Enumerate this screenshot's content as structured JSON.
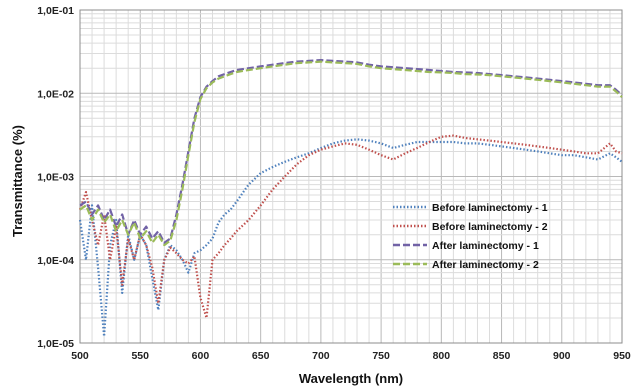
{
  "chart_data": {
    "type": "line",
    "title": "",
    "xlabel": "Wavelength (nm)",
    "ylabel": "Transmittance (%)",
    "xlim": [
      500,
      950
    ],
    "ylim": [
      1e-05,
      0.1
    ],
    "yscale": "log",
    "grid": true,
    "legend_position": "center-right",
    "x_ticks": [
      500,
      550,
      600,
      650,
      700,
      750,
      800,
      850,
      900,
      950
    ],
    "x_tick_labels": [
      "500",
      "550",
      "600",
      "650",
      "700",
      "750",
      "800",
      "850",
      "900",
      "950"
    ],
    "y_tick_labels": [
      "1,0E-05",
      "1,0E-04",
      "1,0E-03",
      "1,0E-02",
      "1,0E-01"
    ],
    "x": [
      500,
      505,
      510,
      515,
      520,
      525,
      530,
      535,
      540,
      545,
      550,
      555,
      560,
      565,
      570,
      575,
      580,
      585,
      590,
      595,
      600,
      605,
      610,
      615,
      620,
      625,
      630,
      640,
      650,
      660,
      670,
      680,
      690,
      700,
      710,
      720,
      730,
      740,
      750,
      760,
      770,
      780,
      790,
      800,
      810,
      820,
      830,
      840,
      850,
      860,
      870,
      880,
      890,
      900,
      910,
      920,
      930,
      940,
      945,
      950
    ],
    "series": [
      {
        "name": "Before laminectomy - 1",
        "color": "#4f81bd",
        "dash": "dotted",
        "values": [
          0.0003,
          0.0001,
          0.00045,
          8e-05,
          1.2e-05,
          0.00015,
          0.0003,
          4e-05,
          0.0002,
          0.0001,
          0.0002,
          0.00015,
          6e-05,
          2.5e-05,
          0.0001,
          0.00015,
          0.00013,
          0.0001,
          7e-05,
          0.00012,
          0.00013,
          0.00015,
          0.00018,
          0.00028,
          0.00035,
          0.0004,
          0.0005,
          0.0008,
          0.0011,
          0.0013,
          0.0015,
          0.0017,
          0.0019,
          0.0022,
          0.0025,
          0.0027,
          0.0028,
          0.0027,
          0.0025,
          0.0022,
          0.0024,
          0.0026,
          0.0026,
          0.0026,
          0.0026,
          0.0025,
          0.0025,
          0.0024,
          0.0023,
          0.0022,
          0.0021,
          0.002,
          0.0019,
          0.0018,
          0.0018,
          0.0017,
          0.0016,
          0.0019,
          0.0017,
          0.0015
        ]
      },
      {
        "name": "Before laminectomy - 2",
        "color": "#c0504d",
        "dash": "dotted",
        "values": [
          0.0004,
          0.00065,
          0.0003,
          0.00015,
          0.00035,
          0.0001,
          0.00025,
          5e-05,
          0.00018,
          0.0001,
          0.0002,
          0.00015,
          8e-05,
          3e-05,
          0.0001,
          0.00014,
          0.00012,
          0.0001,
          9e-05,
          0.00011,
          3.5e-05,
          2e-05,
          0.0001,
          0.00012,
          0.00015,
          0.00018,
          0.00022,
          0.0003,
          0.00045,
          0.0007,
          0.001,
          0.0014,
          0.0018,
          0.0021,
          0.0023,
          0.0025,
          0.0024,
          0.0021,
          0.0018,
          0.0016,
          0.0019,
          0.0022,
          0.0026,
          0.003,
          0.0031,
          0.0029,
          0.0028,
          0.0027,
          0.0026,
          0.0025,
          0.0024,
          0.0023,
          0.0022,
          0.0021,
          0.002,
          0.0019,
          0.0019,
          0.0025,
          0.002,
          0.0019
        ]
      },
      {
        "name": "After laminectomy - 1",
        "color": "#7162a6",
        "dash": "dashed",
        "values": [
          0.00045,
          0.0005,
          0.00035,
          0.00045,
          0.0003,
          0.0004,
          0.00025,
          0.00035,
          0.0002,
          0.0003,
          0.0002,
          0.00025,
          0.00018,
          0.00022,
          0.00016,
          0.00018,
          0.00035,
          0.0008,
          0.002,
          0.005,
          0.009,
          0.012,
          0.014,
          0.016,
          0.017,
          0.018,
          0.019,
          0.02,
          0.021,
          0.022,
          0.023,
          0.024,
          0.0245,
          0.025,
          0.0245,
          0.024,
          0.0235,
          0.022,
          0.021,
          0.0205,
          0.02,
          0.0195,
          0.019,
          0.0185,
          0.018,
          0.0178,
          0.0175,
          0.017,
          0.0165,
          0.016,
          0.0155,
          0.015,
          0.0145,
          0.014,
          0.0135,
          0.013,
          0.0125,
          0.0125,
          0.011,
          0.0095
        ]
      },
      {
        "name": "After laminectomy - 2",
        "color": "#9bbb59",
        "dash": "dashed",
        "values": [
          0.0004,
          0.00045,
          0.0003,
          0.0004,
          0.00028,
          0.00035,
          0.00022,
          0.0003,
          0.0002,
          0.00028,
          0.00018,
          0.00022,
          0.00016,
          0.0002,
          0.00015,
          0.00017,
          0.0003,
          0.0007,
          0.0018,
          0.0045,
          0.0085,
          0.0115,
          0.0135,
          0.015,
          0.016,
          0.017,
          0.018,
          0.019,
          0.02,
          0.021,
          0.022,
          0.023,
          0.0235,
          0.024,
          0.0235,
          0.023,
          0.0225,
          0.021,
          0.02,
          0.0195,
          0.019,
          0.0185,
          0.018,
          0.0178,
          0.0175,
          0.017,
          0.0168,
          0.0165,
          0.016,
          0.0155,
          0.015,
          0.0145,
          0.014,
          0.0135,
          0.013,
          0.0125,
          0.012,
          0.012,
          0.0105,
          0.009
        ]
      }
    ]
  }
}
